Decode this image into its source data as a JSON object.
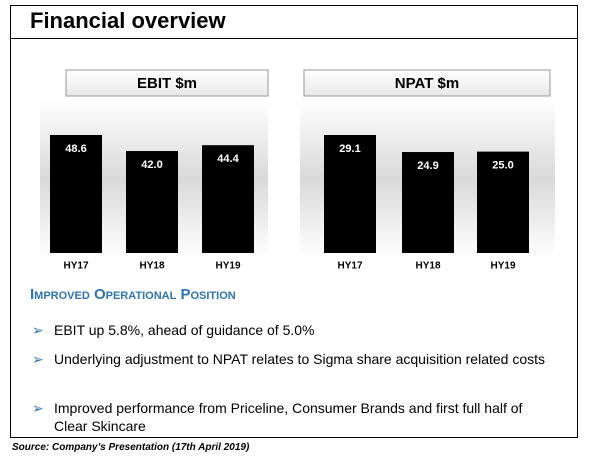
{
  "title": "Financial overview",
  "chart_data": [
    {
      "type": "bar",
      "title": "EBIT $m",
      "categories": [
        "HY17",
        "HY18",
        "HY19"
      ],
      "values": [
        48.6,
        42.0,
        44.4
      ],
      "value_labels": [
        "48.6",
        "42.0",
        "44.4"
      ],
      "color": "#000000"
    },
    {
      "type": "bar",
      "title": "NPAT $m",
      "categories": [
        "HY17",
        "HY18",
        "HY19"
      ],
      "values": [
        29.1,
        24.9,
        25.0
      ],
      "value_labels": [
        "29.1",
        "24.9",
        "25.0"
      ],
      "color": "#000000"
    }
  ],
  "heading": "Improved Operational Position",
  "bullets": [
    "EBIT up 5.8%, ahead of guidance of 5.0%",
    "Underlying adjustment to NPAT relates to Sigma share acquisition related costs",
    "Improved performance from Priceline, Consumer Brands and first full half of Clear Skincare"
  ],
  "source": "Source: Company’s Presentation (17th April 2019)"
}
